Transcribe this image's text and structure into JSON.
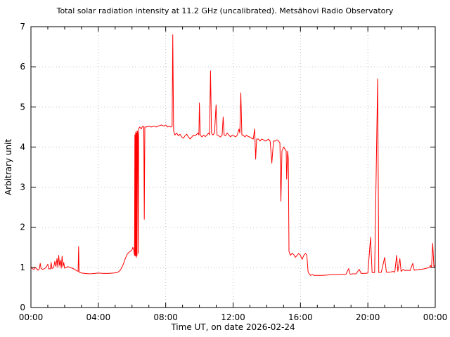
{
  "figure": {
    "title": "Total solar radiation intensity at 11.2 GHz (uncalibrated). Metsähovi Radio Observatory",
    "xlabel": "Time UT, on date 2026-02-24",
    "ylabel": "Arbitrary unit"
  },
  "chart_data": {
    "type": "line",
    "title": "Total solar radiation intensity at 11.2 GHz (uncalibrated). Metsähovi Radio Observatory",
    "xlabel": "Time UT, on date 2026-02-24",
    "ylabel": "Arbitrary unit",
    "xlim_hours": [
      0,
      24
    ],
    "ylim": [
      0,
      7
    ],
    "x_major_tick_hours": [
      0,
      4,
      8,
      12,
      16,
      20,
      24
    ],
    "x_tick_labels": [
      "00:00",
      "04:00",
      "08:00",
      "12:00",
      "16:00",
      "20:00",
      "00:00"
    ],
    "x_minor_tick_step_hours": 1,
    "y_major_ticks": [
      0,
      1,
      2,
      3,
      4,
      5,
      6,
      7
    ],
    "y_tick_labels": [
      "0",
      "1",
      "2",
      "3",
      "4",
      "5",
      "6",
      "7"
    ],
    "grid": {
      "style": "dotted",
      "color": "#c0c0c0",
      "x_at_hours": [
        4,
        8,
        12,
        16,
        20
      ],
      "y_at": [
        1,
        2,
        3,
        4,
        5,
        6
      ]
    },
    "legend": "none",
    "frame_color": "#000000",
    "series": [
      {
        "name": "solar-radiation-intensity",
        "color": "#ff0000",
        "points_hour_value": [
          [
            0.0,
            1.02
          ],
          [
            0.08,
            0.97
          ],
          [
            0.17,
            0.95
          ],
          [
            0.25,
            1.0
          ],
          [
            0.33,
            0.97
          ],
          [
            0.42,
            0.93
          ],
          [
            0.5,
            0.97
          ],
          [
            0.55,
            1.1
          ],
          [
            0.6,
            0.97
          ],
          [
            0.7,
            0.95
          ],
          [
            0.8,
            0.97
          ],
          [
            0.9,
            1.0
          ],
          [
            1.0,
            1.08
          ],
          [
            1.05,
            0.97
          ],
          [
            1.15,
            0.96
          ],
          [
            1.2,
            1.12
          ],
          [
            1.25,
            0.97
          ],
          [
            1.35,
            1.0
          ],
          [
            1.42,
            1.15
          ],
          [
            1.48,
            1.02
          ],
          [
            1.55,
            1.22
          ],
          [
            1.6,
            1.0
          ],
          [
            1.65,
            1.3
          ],
          [
            1.7,
            1.05
          ],
          [
            1.75,
            1.18
          ],
          [
            1.8,
            0.98
          ],
          [
            1.85,
            1.28
          ],
          [
            1.9,
            1.02
          ],
          [
            1.95,
            1.12
          ],
          [
            2.0,
            0.98
          ],
          [
            2.1,
            1.0
          ],
          [
            2.2,
            1.02
          ],
          [
            2.3,
            1.0
          ],
          [
            2.45,
            0.98
          ],
          [
            2.6,
            0.95
          ],
          [
            2.7,
            0.92
          ],
          [
            2.8,
            0.9
          ],
          [
            2.83,
            1.52
          ],
          [
            2.86,
            0.88
          ],
          [
            3.0,
            0.86
          ],
          [
            3.2,
            0.85
          ],
          [
            3.5,
            0.84
          ],
          [
            3.8,
            0.85
          ],
          [
            4.0,
            0.86
          ],
          [
            4.3,
            0.85
          ],
          [
            4.6,
            0.85
          ],
          [
            4.9,
            0.86
          ],
          [
            5.1,
            0.87
          ],
          [
            5.2,
            0.89
          ],
          [
            5.3,
            0.93
          ],
          [
            5.4,
            1.0
          ],
          [
            5.5,
            1.1
          ],
          [
            5.6,
            1.22
          ],
          [
            5.7,
            1.32
          ],
          [
            5.8,
            1.37
          ],
          [
            5.9,
            1.4
          ],
          [
            6.0,
            1.44
          ],
          [
            6.05,
            1.5
          ],
          [
            6.1,
            1.45
          ],
          [
            6.13,
            1.35
          ],
          [
            6.15,
            1.3
          ],
          [
            6.17,
            4.3
          ],
          [
            6.19,
            1.3
          ],
          [
            6.21,
            4.35
          ],
          [
            6.22,
            1.28
          ],
          [
            6.24,
            4.4
          ],
          [
            6.26,
            1.25
          ],
          [
            6.28,
            4.35
          ],
          [
            6.3,
            1.3
          ],
          [
            6.32,
            4.4
          ],
          [
            6.35,
            4.3
          ],
          [
            6.37,
            1.35
          ],
          [
            6.4,
            4.45
          ],
          [
            6.45,
            4.5
          ],
          [
            6.5,
            4.48
          ],
          [
            6.55,
            4.45
          ],
          [
            6.6,
            4.5
          ],
          [
            6.65,
            4.52
          ],
          [
            6.7,
            4.5
          ],
          [
            6.73,
            2.2
          ],
          [
            6.76,
            4.5
          ],
          [
            6.85,
            4.5
          ],
          [
            7.0,
            4.52
          ],
          [
            7.15,
            4.5
          ],
          [
            7.3,
            4.52
          ],
          [
            7.45,
            4.5
          ],
          [
            7.6,
            4.53
          ],
          [
            7.75,
            4.55
          ],
          [
            7.9,
            4.52
          ],
          [
            8.0,
            4.55
          ],
          [
            8.1,
            4.5
          ],
          [
            8.2,
            4.52
          ],
          [
            8.3,
            4.5
          ],
          [
            8.38,
            4.52
          ],
          [
            8.42,
            6.8
          ],
          [
            8.47,
            4.4
          ],
          [
            8.55,
            4.3
          ],
          [
            8.65,
            4.35
          ],
          [
            8.75,
            4.28
          ],
          [
            8.85,
            4.32
          ],
          [
            8.95,
            4.25
          ],
          [
            9.05,
            4.22
          ],
          [
            9.15,
            4.28
          ],
          [
            9.25,
            4.32
          ],
          [
            9.35,
            4.25
          ],
          [
            9.45,
            4.2
          ],
          [
            9.55,
            4.25
          ],
          [
            9.65,
            4.3
          ],
          [
            9.75,
            4.28
          ],
          [
            9.85,
            4.32
          ],
          [
            9.92,
            4.35
          ],
          [
            9.97,
            4.3
          ],
          [
            10.0,
            5.1
          ],
          [
            10.05,
            4.3
          ],
          [
            10.15,
            4.25
          ],
          [
            10.25,
            4.3
          ],
          [
            10.35,
            4.26
          ],
          [
            10.45,
            4.3
          ],
          [
            10.55,
            4.35
          ],
          [
            10.6,
            4.3
          ],
          [
            10.66,
            5.9
          ],
          [
            10.72,
            4.35
          ],
          [
            10.8,
            4.3
          ],
          [
            10.9,
            4.35
          ],
          [
            10.99,
            5.05
          ],
          [
            11.05,
            4.3
          ],
          [
            11.15,
            4.28
          ],
          [
            11.25,
            4.25
          ],
          [
            11.35,
            4.3
          ],
          [
            11.41,
            4.75
          ],
          [
            11.47,
            4.3
          ],
          [
            11.55,
            4.28
          ],
          [
            11.65,
            4.35
          ],
          [
            11.75,
            4.3
          ],
          [
            11.85,
            4.25
          ],
          [
            11.95,
            4.3
          ],
          [
            12.05,
            4.28
          ],
          [
            12.15,
            4.25
          ],
          [
            12.25,
            4.3
          ],
          [
            12.35,
            4.45
          ],
          [
            12.4,
            4.35
          ],
          [
            12.46,
            5.35
          ],
          [
            12.52,
            4.3
          ],
          [
            12.6,
            4.3
          ],
          [
            12.7,
            4.25
          ],
          [
            12.8,
            4.3
          ],
          [
            12.9,
            4.26
          ],
          [
            13.0,
            4.25
          ],
          [
            13.1,
            4.22
          ],
          [
            13.2,
            4.2
          ],
          [
            13.28,
            4.45
          ],
          [
            13.34,
            3.7
          ],
          [
            13.4,
            4.2
          ],
          [
            13.5,
            4.2
          ],
          [
            13.6,
            4.15
          ],
          [
            13.7,
            4.2
          ],
          [
            13.8,
            4.18
          ],
          [
            13.9,
            4.15
          ],
          [
            14.0,
            4.16
          ],
          [
            14.1,
            4.2
          ],
          [
            14.2,
            4.15
          ],
          [
            14.3,
            3.6
          ],
          [
            14.4,
            4.15
          ],
          [
            14.5,
            4.15
          ],
          [
            14.6,
            4.18
          ],
          [
            14.7,
            4.15
          ],
          [
            14.78,
            4.1
          ],
          [
            14.84,
            2.65
          ],
          [
            14.9,
            3.9
          ],
          [
            15.0,
            4.0
          ],
          [
            15.08,
            3.95
          ],
          [
            15.15,
            3.9
          ],
          [
            15.18,
            3.2
          ],
          [
            15.24,
            3.9
          ],
          [
            15.28,
            3.7
          ],
          [
            15.32,
            1.4
          ],
          [
            15.4,
            1.3
          ],
          [
            15.5,
            1.35
          ],
          [
            15.6,
            1.32
          ],
          [
            15.7,
            1.25
          ],
          [
            15.8,
            1.3
          ],
          [
            15.9,
            1.35
          ],
          [
            16.0,
            1.3
          ],
          [
            16.1,
            1.2
          ],
          [
            16.2,
            1.3
          ],
          [
            16.3,
            1.35
          ],
          [
            16.38,
            1.3
          ],
          [
            16.45,
            0.9
          ],
          [
            16.5,
            0.85
          ],
          [
            16.6,
            0.8
          ],
          [
            16.7,
            0.82
          ],
          [
            16.8,
            0.8
          ],
          [
            17.0,
            0.8
          ],
          [
            17.3,
            0.8
          ],
          [
            17.6,
            0.81
          ],
          [
            17.9,
            0.82
          ],
          [
            18.2,
            0.82
          ],
          [
            18.5,
            0.83
          ],
          [
            18.7,
            0.83
          ],
          [
            18.86,
            0.97
          ],
          [
            18.95,
            0.83
          ],
          [
            19.1,
            0.84
          ],
          [
            19.3,
            0.84
          ],
          [
            19.49,
            0.95
          ],
          [
            19.6,
            0.85
          ],
          [
            19.8,
            0.85
          ],
          [
            20.0,
            0.86
          ],
          [
            20.16,
            1.75
          ],
          [
            20.25,
            0.87
          ],
          [
            20.4,
            0.87
          ],
          [
            20.58,
            5.7
          ],
          [
            20.65,
            0.87
          ],
          [
            20.8,
            0.88
          ],
          [
            21.0,
            1.25
          ],
          [
            21.1,
            0.88
          ],
          [
            21.3,
            0.88
          ],
          [
            21.5,
            0.9
          ],
          [
            21.6,
            0.88
          ],
          [
            21.71,
            1.3
          ],
          [
            21.78,
            0.9
          ],
          [
            21.9,
            1.22
          ],
          [
            21.97,
            0.9
          ],
          [
            22.1,
            0.95
          ],
          [
            22.2,
            0.92
          ],
          [
            22.35,
            0.93
          ],
          [
            22.5,
            0.92
          ],
          [
            22.67,
            1.1
          ],
          [
            22.75,
            0.93
          ],
          [
            22.9,
            0.94
          ],
          [
            23.1,
            0.95
          ],
          [
            23.3,
            0.96
          ],
          [
            23.5,
            0.98
          ],
          [
            23.65,
            1.0
          ],
          [
            23.72,
            1.05
          ],
          [
            23.78,
            1.0
          ],
          [
            23.85,
            1.6
          ],
          [
            23.92,
            1.02
          ],
          [
            24.0,
            1.05
          ]
        ]
      }
    ]
  }
}
